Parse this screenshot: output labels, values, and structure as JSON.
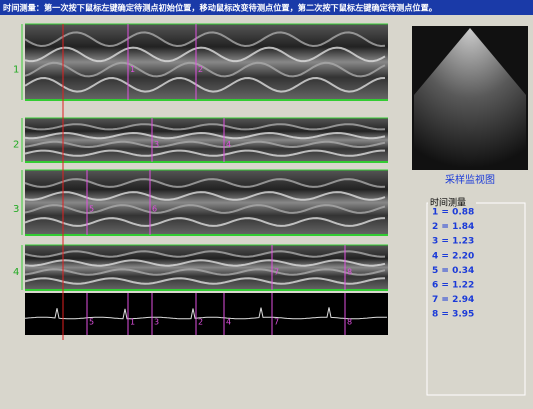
{
  "title": "时间测量：第一次按下鼠标左键确定待测点初始位置，移动鼠标改变待测点位置，第二次按下鼠标左键确定待测点位置。",
  "panels": [
    {
      "label": "1",
      "markers": [
        "1",
        "2"
      ]
    },
    {
      "label": "2",
      "markers": [
        "3",
        "4"
      ]
    },
    {
      "label": "3",
      "markers": [
        "5",
        "6"
      ]
    },
    {
      "label": "4",
      "markers": [
        "7",
        "8"
      ]
    }
  ],
  "ecg_markers": [
    "5",
    "1",
    "3",
    "2",
    "4",
    "7",
    "8"
  ],
  "monitor_caption": "采样监视图",
  "measurement": {
    "title": "时间测量",
    "items": [
      "1 = 0.88",
      "2 = 1.84",
      "3 = 1.23",
      "4 = 2.20",
      "5 = 0.34",
      "6 = 1.22",
      "7 = 2.94",
      "8 = 3.95"
    ]
  }
}
